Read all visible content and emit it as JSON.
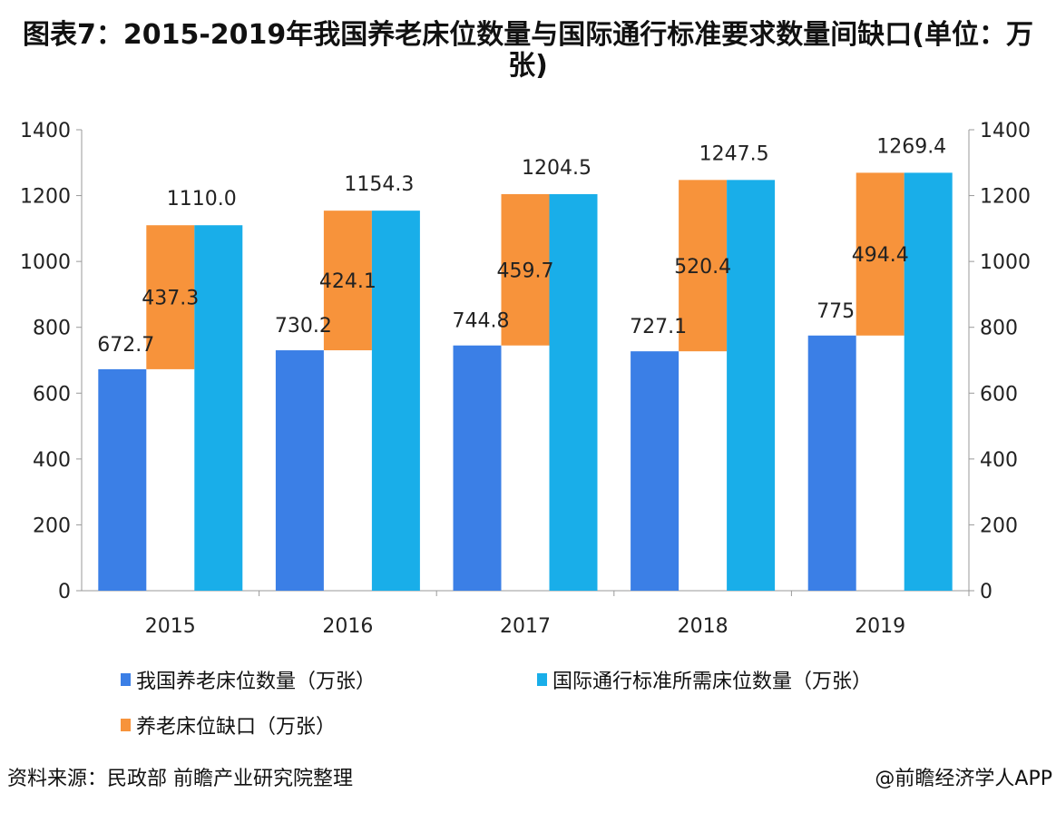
{
  "title": "图表7：2015-2019年我国养老床位数量与国际通行标准要求数量间缺口(单位：万张)",
  "chart_data": {
    "type": "bar",
    "title": "图表7：2015-2019年我国养老床位数量与国际通行标准要求数量间缺口(单位：万张)",
    "categories": [
      "2015",
      "2016",
      "2017",
      "2018",
      "2019"
    ],
    "series": [
      {
        "name": "我国养老床位数量（万张）",
        "values": [
          672.7,
          730.2,
          744.8,
          727.1,
          775
        ],
        "labels": [
          "672.7",
          "730.2",
          "744.8",
          "727.1",
          "775"
        ],
        "color": "#3b7fe6"
      },
      {
        "name": "养老床位缺口（万张）",
        "values": [
          437.3,
          424.1,
          459.7,
          520.4,
          494.4
        ],
        "labels": [
          "437.3",
          "424.1",
          "459.7",
          "520.4",
          "494.4"
        ],
        "color": "#f7933b",
        "stacked_on": "我国养老床位数量（万张）"
      },
      {
        "name": "国际通行标准所需床位数量（万张）",
        "values": [
          1110.0,
          1154.3,
          1204.5,
          1247.5,
          1269.4
        ],
        "labels": [
          "1110.0",
          "1154.3",
          "1204.5",
          "1247.5",
          "1269.4"
        ],
        "color": "#19aee9"
      }
    ],
    "ylim": [
      0,
      1400
    ],
    "yticks": [
      "0",
      "200",
      "400",
      "600",
      "800",
      "1000",
      "1200",
      "1400"
    ],
    "secondary_yaxis": true,
    "grid": false,
    "legend_position": "bottom"
  },
  "legend": [
    "我国养老床位数量（万张）",
    "国际通行标准所需床位数量（万张）",
    "养老床位缺口（万张）"
  ],
  "footer": {
    "source": "资料来源：民政部 前瞻产业研究院整理",
    "credit": "@前瞻经济学人APP"
  }
}
